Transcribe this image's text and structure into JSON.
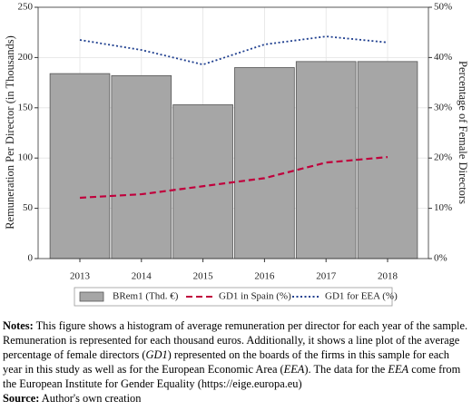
{
  "chart_data": {
    "type": "bar",
    "categories": [
      "2013",
      "2014",
      "2015",
      "2016",
      "2017",
      "2018"
    ],
    "series": [
      {
        "name": "BRem1 (Thd. €)",
        "type": "bar",
        "color": "#a6a6a6",
        "values": [
          184,
          182,
          153,
          190,
          196,
          196
        ]
      },
      {
        "name": "GD1 in Spain (%)",
        "type": "line",
        "axis": "y2",
        "color": "#c0003c",
        "linestyle": "dashed",
        "values": [
          12.1,
          12.8,
          14.4,
          16,
          19.1,
          20.2
        ]
      },
      {
        "name": "GD1 for EEA (%)",
        "type": "line",
        "axis": "y2",
        "color": "#1f3f8f",
        "linestyle": "dotted",
        "values": [
          43.5,
          41.5,
          38.6,
          42.6,
          44.2,
          43
        ]
      }
    ],
    "ylabel": "Remuneration Per Director (in Thousands)",
    "y2label": "Percentage of Female Directors",
    "ylim": [
      0,
      250
    ],
    "yticks": [
      0,
      50,
      100,
      150,
      200,
      250
    ],
    "y2lim": [
      0,
      50
    ],
    "y2ticks": [
      {
        "value": 0,
        "label": "0%"
      },
      {
        "value": 10,
        "label": "10%"
      },
      {
        "value": 20,
        "label": "20%"
      },
      {
        "value": 30,
        "label": "30%"
      },
      {
        "value": 40,
        "label": "40%"
      },
      {
        "value": 50,
        "label": "50%"
      }
    ],
    "grid": true,
    "legend": "bottom"
  },
  "notes": {
    "label": "Notes:",
    "parts": [
      " This figure shows a histogram of average remuneration per director for each year of the sample. Remuneration is represented for each thousand euros. Additionally, it shows a line plot of the average percentage of female directors (",
      "GD1",
      ") represented on the boards of the firms in this sample for each year in this study as well as for the European Economic Area (",
      "EEA",
      "). The data for the ",
      "EEA",
      " come from the European Institute for Gender Equality (https://eige.europa.eu)"
    ],
    "source_label": "Source:",
    "source": " Author's own creation"
  }
}
